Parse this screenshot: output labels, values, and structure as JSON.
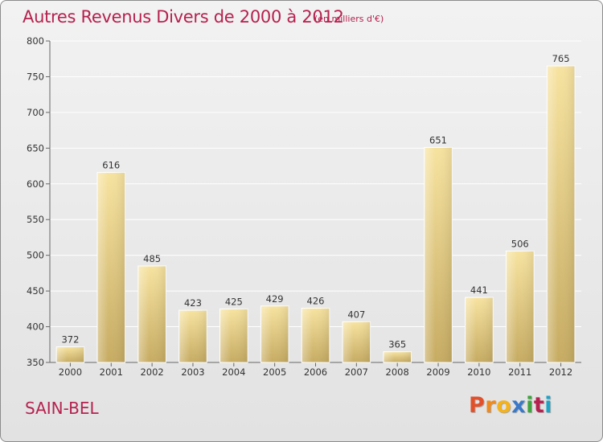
{
  "header": {
    "title": "Autres Revenus Divers de 2000 à 2012",
    "subtitle": "(en milliers d'€)"
  },
  "footer": {
    "commune": "SAIN-BEL",
    "logo": [
      "P",
      "r",
      "o",
      "x",
      "i",
      "t",
      "i"
    ]
  },
  "colors": {
    "title": "#b5224f",
    "bar_light": "#f7e3a0",
    "bar_dark": "#c6ab62",
    "grid": "#ffffff",
    "logo": [
      "#e2502a",
      "#f08a1c",
      "#f4b21c",
      "#3a78c8",
      "#3fa33f",
      "#b5224f",
      "#1ea2c6"
    ]
  },
  "chart_data": {
    "type": "bar",
    "categories": [
      "2000",
      "2001",
      "2002",
      "2003",
      "2004",
      "2005",
      "2006",
      "2007",
      "2008",
      "2009",
      "2010",
      "2011",
      "2012"
    ],
    "values": [
      372,
      616,
      485,
      423,
      425,
      429,
      426,
      407,
      365,
      651,
      441,
      506,
      765
    ],
    "ylim": [
      350,
      800
    ],
    "yticks": [
      350,
      400,
      450,
      500,
      550,
      600,
      650,
      700,
      750,
      800
    ],
    "grid": true,
    "data_labels": true
  }
}
